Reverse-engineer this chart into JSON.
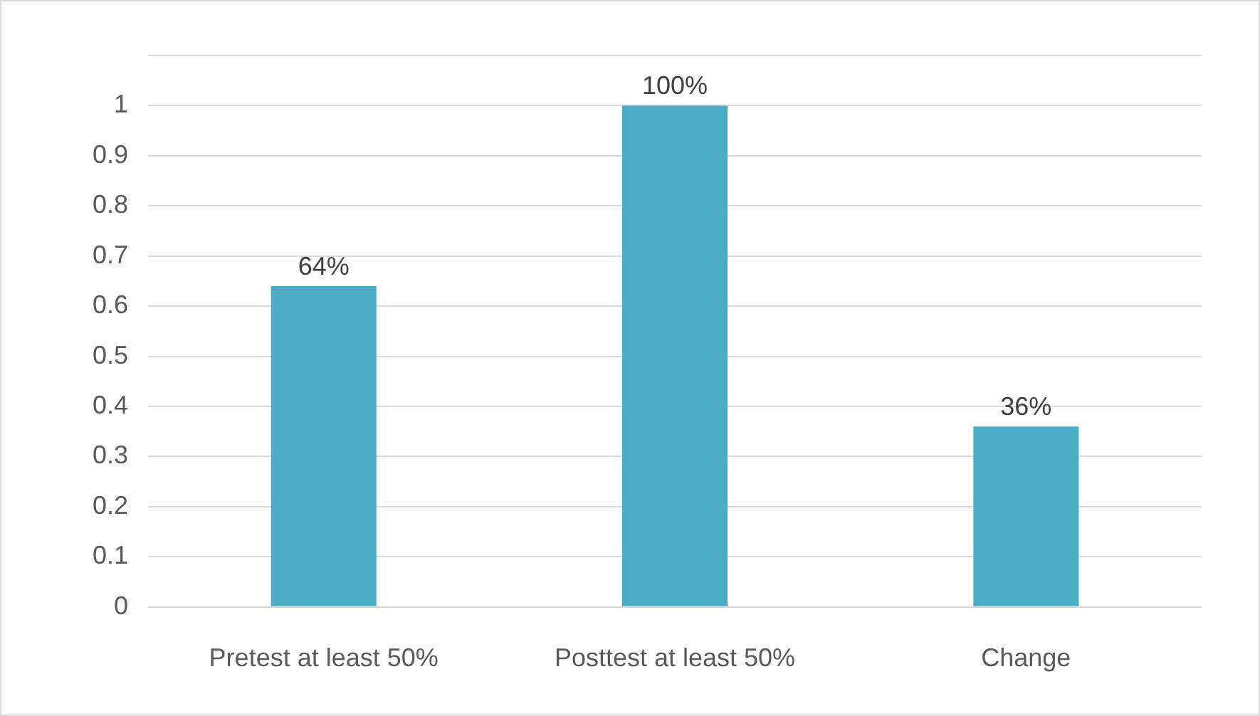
{
  "chart_data": {
    "type": "bar",
    "categories": [
      "Pretest at least 50%",
      "Posttest at least 50%",
      "Change"
    ],
    "values": [
      0.64,
      1,
      0.36
    ],
    "color": "#4bacc6",
    "value_labels": [
      "64%",
      "100%",
      "36%"
    ],
    "ylim": [
      0,
      1.1
    ],
    "yticks": [
      0,
      0.1,
      0.2,
      0.3,
      0.4,
      0.5,
      0.6,
      0.7,
      0.8,
      0.9,
      1,
      {
        "value": 1.1,
        "label": null
      }
    ],
    "grid": "y",
    "legend": false
  }
}
